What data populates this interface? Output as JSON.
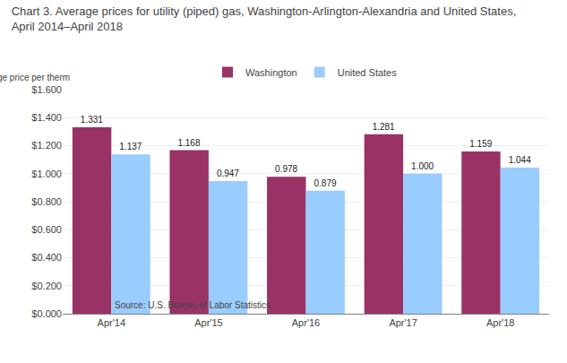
{
  "chart_data": {
    "type": "bar",
    "title": "Chart 3. Average prices for utility (piped) gas, Washington-Arlington-Alexandria and United States,",
    "subtitle": "April 2014–April 2018",
    "y_label": "Average price per therm",
    "annotations": [
      "Source: U.S. Bureau of Labor Statistics."
    ],
    "categories": [
      "Apr'14",
      "Apr'15",
      "Apr'16",
      "Apr'17",
      "Apr'18"
    ],
    "series": [
      {
        "name": "Washington",
        "color": "#993366",
        "values": [
          1.331,
          1.168,
          0.978,
          1.281,
          1.159
        ],
        "value_labels": [
          "1.331",
          "1.168",
          "0.978",
          "1.281",
          "1.159"
        ]
      },
      {
        "name": "United States",
        "color": "#99CCFF",
        "values": [
          1.137,
          0.947,
          0.879,
          1.0,
          1.044
        ],
        "value_labels": [
          "1.137",
          "0.947",
          "0.879",
          "1.000",
          "1.044"
        ]
      }
    ],
    "ylim": [
      0.0,
      1.6
    ],
    "yticks": [
      {
        "value": 0.0,
        "label": "$0.000"
      },
      {
        "value": 0.2,
        "label": "$0.200"
      },
      {
        "value": 0.4,
        "label": "$0.400"
      },
      {
        "value": 0.6,
        "label": "$0.600"
      },
      {
        "value": 0.8,
        "label": "$0.800"
      },
      {
        "value": 1.0,
        "label": "$1.000"
      },
      {
        "value": 1.2,
        "label": "$1.200"
      },
      {
        "value": 1.4,
        "label": "$1.400"
      },
      {
        "value": 1.6,
        "label": "$1.600"
      }
    ],
    "grid": true,
    "legend": "top",
    "data_labels": true
  }
}
